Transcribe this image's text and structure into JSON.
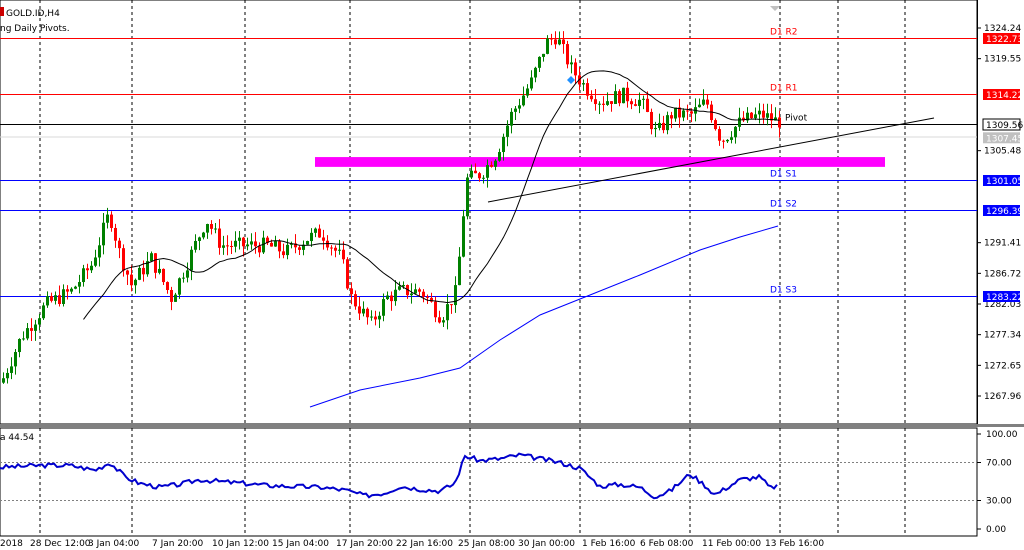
{
  "header": {
    "symbol": "GOLD.ID,H4",
    "indicator": "ng Daily Pivots."
  },
  "rsi": {
    "value_label": "a 44.54",
    "levels": [
      "100.00",
      "70.00",
      "30.00",
      "0.00"
    ],
    "level_values": [
      100,
      70,
      30,
      0
    ]
  },
  "price_axis": {
    "ticks": [
      "1324.24",
      "1319.55",
      "1305.48",
      "1291.41",
      "1286.72",
      "1282.03",
      "1277.34",
      "1272.65",
      "1267.96"
    ],
    "tick_values": [
      1324.24,
      1319.55,
      1305.48,
      1291.41,
      1286.72,
      1282.03,
      1277.34,
      1272.65,
      1267.96
    ]
  },
  "pivots": [
    {
      "id": "r2",
      "label": "D1 R2",
      "price": 1322.73,
      "price_label": "1322.73",
      "color": "#ff0000"
    },
    {
      "id": "r1",
      "label": "D1 R1",
      "price": 1314.22,
      "price_label": "1314.22",
      "color": "#ff0000"
    },
    {
      "id": "pivot",
      "label": "Pivot",
      "price": 1309.56,
      "price_label": "1309.56",
      "color": "#000000"
    },
    {
      "id": "s1",
      "label": "D1 S1",
      "price": 1301.05,
      "price_label": "1301.05",
      "color": "#0000ff"
    },
    {
      "id": "s2",
      "label": "D1 S2",
      "price": 1296.39,
      "price_label": "1296.39",
      "color": "#0000ff"
    },
    {
      "id": "s3",
      "label": "D1 S3",
      "price": 1283.22,
      "price_label": "1283.22",
      "color": "#0000ff"
    }
  ],
  "current_price": {
    "label": "1307.45",
    "value": 1307.45
  },
  "time_axis": [
    "2018",
    "28 Dec 12:00",
    "3 Jan 04:00",
    "7 Jan 20:00",
    "10 Jan 12:00",
    "15 Jan 04:00",
    "17 Jan 20:00",
    "22 Jan 16:00",
    "25 Jan 08:00",
    "30 Jan 00:00",
    "1 Feb 16:00",
    "6 Feb 08:00",
    "11 Feb 00:00",
    "13 Feb 16:00"
  ],
  "support_zone": {
    "price_top": 1304.5,
    "price_bottom": 1303.0,
    "color": "#ff00ff"
  },
  "colors": {
    "bull": "#008000",
    "bear": "#ff0000",
    "ma_fast": "#000000",
    "ma_slow": "#0000ff",
    "rsi": "#0000cd"
  }
}
